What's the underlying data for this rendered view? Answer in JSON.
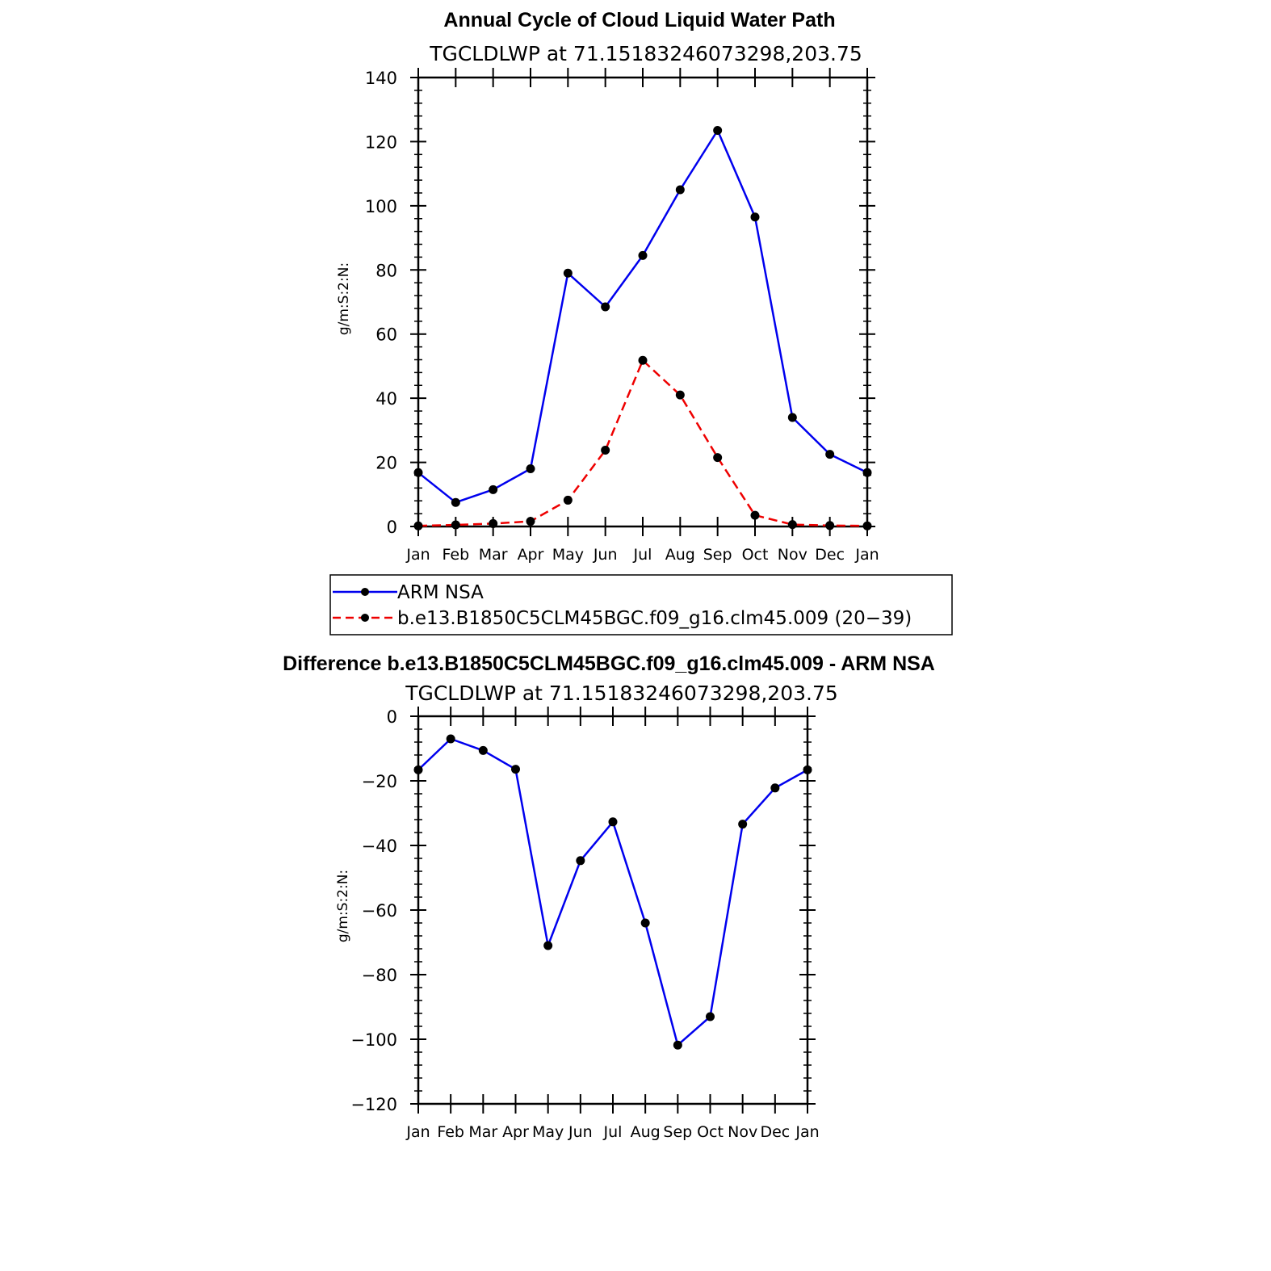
{
  "chart_data": [
    {
      "type": "line",
      "title": "Annual Cycle of Cloud Liquid Water Path",
      "subtitle": "TGCLDLWP at 71.15183246073298,203.75",
      "xlabel": "",
      "ylabel": "g/m:S:2:N:",
      "categories": [
        "Jan",
        "Feb",
        "Mar",
        "Apr",
        "May",
        "Jun",
        "Jul",
        "Aug",
        "Sep",
        "Oct",
        "Nov",
        "Dec",
        "Jan"
      ],
      "ylim": [
        0,
        140
      ],
      "yticks": [
        "0",
        "20",
        "40",
        "60",
        "80",
        "100",
        "120",
        "140"
      ],
      "grid": false,
      "legend_position": "bottom",
      "series": [
        {
          "name": "ARM NSA",
          "color": "#0000ee",
          "style": "solid",
          "marker": "dot",
          "values": [
            16.8,
            7.5,
            11.5,
            18.0,
            79.0,
            68.5,
            84.5,
            105.0,
            123.5,
            96.5,
            34.0,
            22.5,
            16.8
          ]
        },
        {
          "name": "b.e13.B1850C5CLM45BGC.f09_g16.clm45.009 (20−39)",
          "color": "#ee0000",
          "style": "dashed",
          "marker": "dot",
          "values": [
            0.2,
            0.5,
            0.9,
            1.6,
            8.2,
            23.8,
            51.8,
            41.0,
            21.5,
            3.5,
            0.6,
            0.3,
            0.2
          ]
        }
      ]
    },
    {
      "type": "line",
      "title": "Difference b.e13.B1850C5CLM45BGC.f09_g16.clm45.009 - ARM NSA",
      "subtitle": "TGCLDLWP at 71.15183246073298,203.75",
      "xlabel": "",
      "ylabel": "g/m:S:2:N:",
      "categories": [
        "Jan",
        "Feb",
        "Mar",
        "Apr",
        "May",
        "Jun",
        "Jul",
        "Aug",
        "Sep",
        "Oct",
        "Nov",
        "Dec",
        "Jan"
      ],
      "ylim": [
        -120,
        0
      ],
      "yticks": [
        "−120",
        "−100",
        "−80",
        "−60",
        "−40",
        "−20",
        "0"
      ],
      "grid": false,
      "series": [
        {
          "color": "#0000ee",
          "style": "solid",
          "marker": "dot",
          "values": [
            -16.6,
            -7.0,
            -10.6,
            -16.4,
            -71.0,
            -44.7,
            -32.7,
            -64.0,
            -101.8,
            -93.0,
            -33.4,
            -22.2,
            -16.6
          ]
        }
      ]
    }
  ]
}
